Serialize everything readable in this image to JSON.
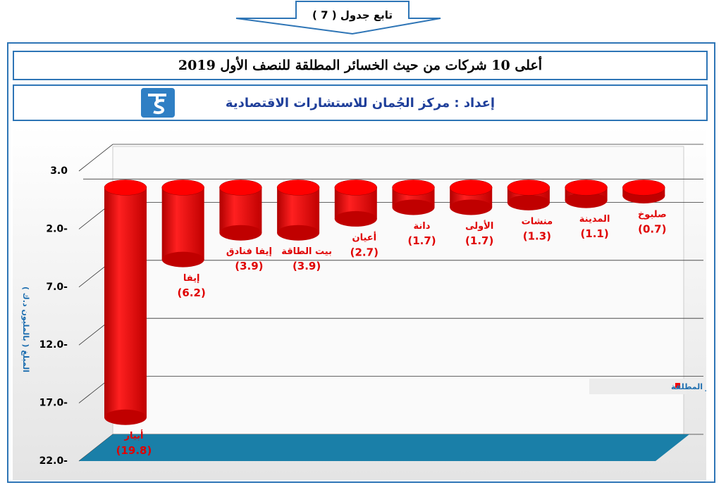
{
  "header": "تابع جدول ( 7 )",
  "chart_data": {
    "type": "bar",
    "title": "أعلى 10 شركات من حيث الخسائر المطلقة للنصف الأول 2019",
    "subtitle": "إعداد : مركز الجُمان للاستشارات الاقتصادية",
    "y_label": "المبلغ ( بالمليون د.ك )",
    "categories": [
      "أبيار",
      "إيفا",
      "إيفا فنادق",
      "بيت الطاقة",
      "أعيان",
      "دانة",
      "الأولى",
      "منشات",
      "المدينة",
      "صلبوخ"
    ],
    "series": [
      {
        "name": "الخسائر المطلقة",
        "color": "#ff0000",
        "values": [
          -19.8,
          -6.2,
          -3.9,
          -3.9,
          -2.7,
          -1.7,
          -1.7,
          -1.3,
          -1.1,
          -0.7
        ],
        "value_labels": [
          "(19.8)",
          "(6.2)",
          "(3.9)",
          "(3.9)",
          "(2.7)",
          "(1.7)",
          "(1.7)",
          "(1.3)",
          "(1.1)",
          "(0.7)"
        ]
      }
    ],
    "ylim": [
      -22,
      3
    ],
    "yticks": [
      {
        "value": 3,
        "label": "3.0"
      },
      {
        "value": -2,
        "label": "2.0-"
      },
      {
        "value": -7,
        "label": "7.0-"
      },
      {
        "value": -12,
        "label": "12.0-"
      },
      {
        "value": -17,
        "label": "17.0-"
      },
      {
        "value": -22,
        "label": "22.0-"
      }
    ],
    "grid": true,
    "legend": "right"
  }
}
